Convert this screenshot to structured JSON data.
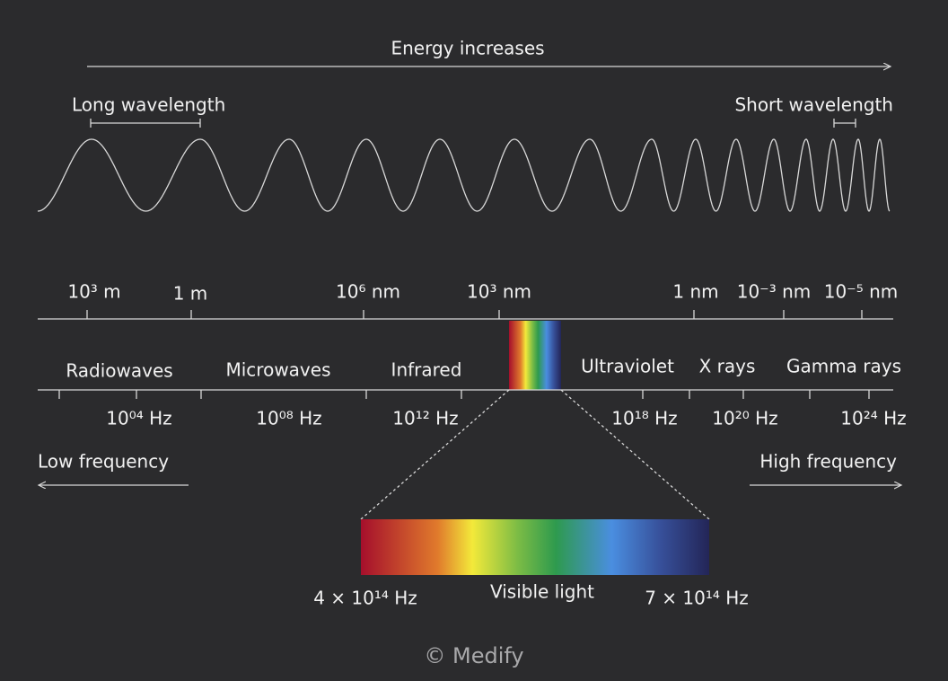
{
  "header": {
    "energy": "Energy increases",
    "long_wavelength": "Long wavelength",
    "short_wavelength": "Short wavelength"
  },
  "wavelength_scale": [
    "10³ m",
    "1 m",
    "10⁶ nm",
    "10³ nm",
    "1 nm",
    "10⁻³ nm",
    "10⁻⁵ nm"
  ],
  "bands": [
    "Radiowaves",
    "Microwaves",
    "Infrared",
    "Ultraviolet",
    "X rays",
    "Gamma rays"
  ],
  "frequency_scale": [
    "10⁰⁴ Hz",
    "10⁰⁸ Hz",
    "10¹² Hz",
    "10¹⁸ Hz",
    "10²⁰ Hz",
    "10²⁴ Hz"
  ],
  "frequency_arrows": {
    "low": "Low frequency",
    "high": "High frequency"
  },
  "visible": {
    "low": "4 × 10¹⁴ Hz",
    "label": "Visible light",
    "high": "7 × 10¹⁴ Hz"
  },
  "footer": "© Medify"
}
